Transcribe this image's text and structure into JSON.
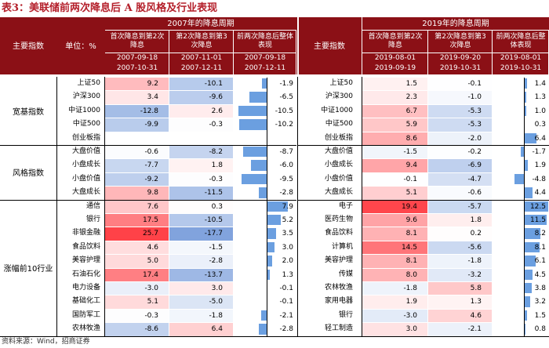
{
  "title": "表3：美联储前两次降息后 A 股风格及行业表现",
  "source": "资料来源：Wind，招商证券",
  "header": {
    "main_index": "主要指数",
    "unit": "单位：%",
    "period_2007": "2007年的降息周期",
    "period_2019": "2019年的降息周期",
    "col_first": "首次降息到第2次降息",
    "col_second": "第2次降息到第3次降息",
    "col_overall": "前两次降息后整体表现",
    "dates_2007": [
      [
        "2007-09-18",
        "2007-10-31"
      ],
      [
        "2007-11-01",
        "2007-12-11"
      ],
      [
        "2007-09-18",
        "2007-12-11"
      ]
    ],
    "dates_2019": [
      [
        "2019-08-01",
        "2019-09-19"
      ],
      [
        "2019-09-20",
        "2019-10-31"
      ],
      [
        "2019-08-01",
        "2019-10-31"
      ]
    ]
  },
  "groups": [
    {
      "name": "宽基指数"
    },
    {
      "name": "风格指数"
    },
    {
      "name": "涨幅前10行业"
    }
  ],
  "rows_2007": [
    {
      "name": "上证50",
      "v": [
        9.2,
        -10.1,
        -1.9
      ]
    },
    {
      "name": "沪深300",
      "v": [
        3.4,
        -9.6,
        -6.5
      ]
    },
    {
      "name": "中证1000",
      "v": [
        -12.8,
        2.6,
        -10.5
      ]
    },
    {
      "name": "中证500",
      "v": [
        -9.9,
        -0.3,
        -10.2
      ]
    },
    {
      "name": "创业板指",
      "v": [
        null,
        null,
        null
      ]
    },
    {
      "name": "大盘价值",
      "v": [
        -0.6,
        -8.2,
        -8.7
      ]
    },
    {
      "name": "小盘成长",
      "v": [
        -7.7,
        1.8,
        -6.0
      ]
    },
    {
      "name": "小盘价值",
      "v": [
        -9.2,
        -0.3,
        -9.5
      ]
    },
    {
      "name": "大盘成长",
      "v": [
        9.8,
        -11.5,
        -2.8
      ]
    },
    {
      "name": "通信",
      "v": [
        7.6,
        0.3,
        7.9
      ]
    },
    {
      "name": "银行",
      "v": [
        17.5,
        -10.5,
        5.2
      ]
    },
    {
      "name": "非银金融",
      "v": [
        25.7,
        -17.7,
        3.5
      ]
    },
    {
      "name": "食品饮料",
      "v": [
        4.6,
        -1.5,
        3.0
      ]
    },
    {
      "name": "美容护理",
      "v": [
        5.0,
        -2.8,
        2.0
      ]
    },
    {
      "name": "石油石化",
      "v": [
        17.4,
        -13.7,
        1.3
      ]
    },
    {
      "name": "电力设备",
      "v": [
        -3.0,
        3.0,
        -0.1
      ]
    },
    {
      "name": "基础化工",
      "v": [
        5.1,
        -5.0,
        -0.1
      ]
    },
    {
      "name": "国防军工",
      "v": [
        -0.3,
        -1.8,
        -2.1
      ]
    },
    {
      "name": "农林牧渔",
      "v": [
        -8.6,
        6.4,
        -2.8
      ]
    }
  ],
  "rows_2019": [
    {
      "name": "上证50",
      "v": [
        1.5,
        -0.1,
        1.4
      ]
    },
    {
      "name": "沪深300",
      "v": [
        2.3,
        -1.0,
        1.3
      ]
    },
    {
      "name": "中证1000",
      "v": [
        6.7,
        -5.3,
        1.0
      ]
    },
    {
      "name": "中证500",
      "v": [
        5.9,
        -5.3,
        0.3
      ]
    },
    {
      "name": "创业板指",
      "v": [
        8.6,
        -2.0,
        6.4
      ]
    },
    {
      "name": "大盘价值",
      "v": [
        -1.5,
        -0.2,
        -1.7
      ]
    },
    {
      "name": "小盘成长",
      "v": [
        9.4,
        -6.9,
        1.9
      ]
    },
    {
      "name": "小盘价值",
      "v": [
        -0.1,
        -4.7,
        -4.8
      ]
    },
    {
      "name": "大盘成长",
      "v": [
        5.1,
        -0.6,
        4.4
      ]
    },
    {
      "name": "电子",
      "v": [
        19.4,
        -5.7,
        12.5
      ]
    },
    {
      "name": "医药生物",
      "v": [
        9.6,
        1.8,
        11.5
      ]
    },
    {
      "name": "食品饮料",
      "v": [
        8.1,
        0.2,
        8.2
      ]
    },
    {
      "name": "计算机",
      "v": [
        14.5,
        -5.6,
        8.1
      ]
    },
    {
      "name": "美容护理",
      "v": [
        8.1,
        -1.8,
        6.1
      ]
    },
    {
      "name": "传媒",
      "v": [
        8.0,
        -3.2,
        4.5
      ]
    },
    {
      "name": "农林牧渔",
      "v": [
        -1.8,
        5.8,
        3.8
      ]
    },
    {
      "name": "家用电器",
      "v": [
        1.9,
        1.3,
        3.2
      ]
    },
    {
      "name": "银行",
      "v": [
        -3.0,
        4.6,
        1.5
      ]
    },
    {
      "name": "轻工制造",
      "v": [
        3.0,
        -2.1,
        0.8
      ]
    }
  ],
  "colors": {
    "title": "#b41f2a",
    "header_bg": "#8b1016",
    "positive": "#e6434b",
    "negative": "#4f7fcf",
    "bar": "#6b9fe0"
  }
}
